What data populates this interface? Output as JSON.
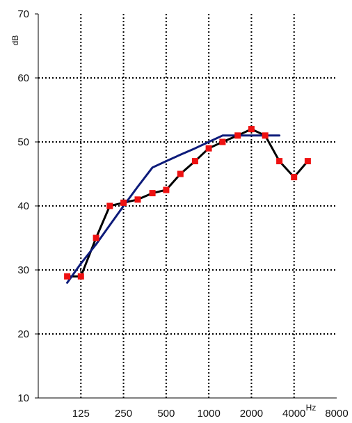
{
  "chart_data": {
    "type": "line",
    "title": "",
    "xlabel": "Hz",
    "ylabel": "dB",
    "x_scale": "log2",
    "xlim": [
      62.5,
      8000
    ],
    "ylim": [
      10,
      70
    ],
    "x_ticks": [
      125,
      250,
      500,
      1000,
      2000,
      4000,
      8000
    ],
    "x_tick_labels": [
      "125",
      "250",
      "500",
      "1000",
      "2000",
      "4000",
      "8000"
    ],
    "y_ticks": [
      10,
      20,
      30,
      40,
      50,
      60,
      70
    ],
    "y_tick_labels": [
      "10",
      "20",
      "30",
      "40",
      "50",
      "60",
      "70"
    ],
    "grid": true,
    "colors": {
      "measured": "#000000",
      "markers": "#ee1111",
      "reference": "#0d1b7a",
      "grid": "#000000"
    },
    "series": [
      {
        "role": "measured",
        "style": "line-with-square-markers",
        "x": [
          100,
          125,
          160,
          200,
          250,
          315,
          400,
          500,
          630,
          800,
          1000,
          1250,
          1600,
          2000,
          2500,
          3150,
          4000,
          5000
        ],
        "y": [
          29,
          29,
          35,
          40,
          40.5,
          41,
          42,
          42.5,
          45,
          47,
          49,
          50,
          51,
          52,
          51,
          47,
          44.5,
          47
        ]
      },
      {
        "role": "reference",
        "style": "line",
        "x": [
          100,
          125,
          160,
          200,
          250,
          315,
          400,
          500,
          630,
          800,
          1000,
          1250,
          1600,
          2000,
          2500,
          3150
        ],
        "y": [
          28,
          31,
          34,
          37,
          40,
          43,
          46,
          47,
          48,
          49,
          50,
          51,
          51,
          51,
          51,
          51
        ]
      }
    ]
  }
}
